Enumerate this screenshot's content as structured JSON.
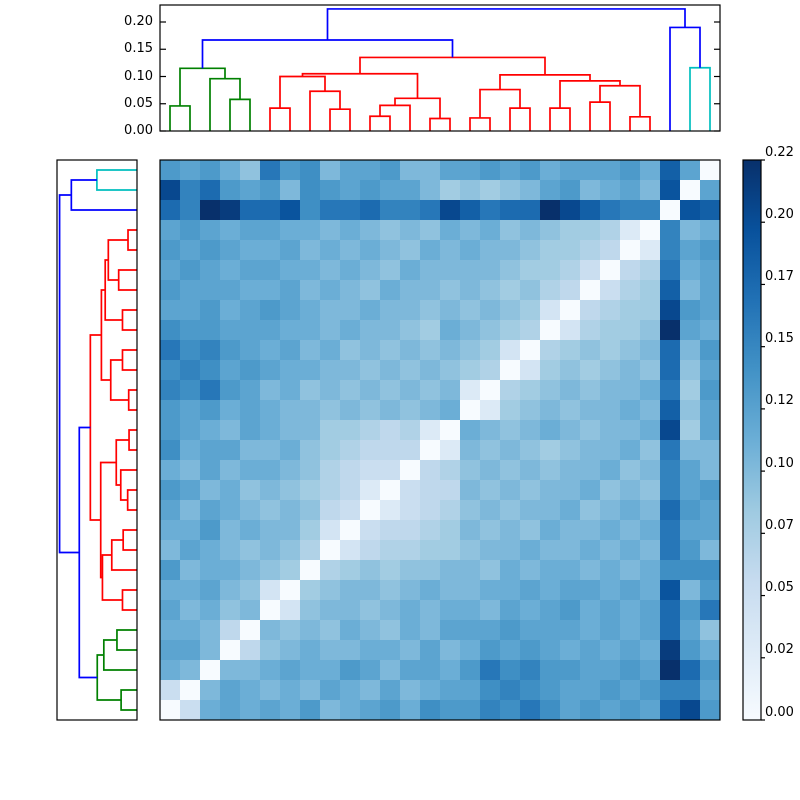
{
  "chart_data": {
    "type": "heatmap",
    "title": "",
    "subtitle": "clustered distance-matrix heatmap with row and column dendrograms",
    "n_rows": 28,
    "n_cols": 28,
    "vmin": 0.0,
    "vmax": 0.22,
    "colormap": "Blues",
    "colormap_stops": [
      "#f7fbff",
      "#deebf7",
      "#c6dbef",
      "#9ecae1",
      "#6baed6",
      "#4292c6",
      "#2171b5",
      "#08519c",
      "#08306b"
    ],
    "grid": false,
    "note": "rows (top to bottom) are the reverse ordering of columns (left to right); anti-diagonal cells equal 0",
    "matrix": [
      [
        0.13,
        0.12,
        0.13,
        0.11,
        0.09,
        0.16,
        0.13,
        0.14,
        0.1,
        0.12,
        0.12,
        0.13,
        0.1,
        0.1,
        0.12,
        0.12,
        0.13,
        0.12,
        0.13,
        0.11,
        0.12,
        0.12,
        0.12,
        0.13,
        0.11,
        0.18,
        0.12,
        0.0
      ],
      [
        0.2,
        0.15,
        0.17,
        0.13,
        0.12,
        0.13,
        0.1,
        0.14,
        0.13,
        0.12,
        0.13,
        0.12,
        0.12,
        0.1,
        0.08,
        0.09,
        0.08,
        0.09,
        0.1,
        0.12,
        0.13,
        0.1,
        0.11,
        0.12,
        0.1,
        0.19,
        0.0,
        0.12
      ],
      [
        0.17,
        0.15,
        0.22,
        0.21,
        0.17,
        0.17,
        0.19,
        0.14,
        0.16,
        0.16,
        0.17,
        0.15,
        0.15,
        0.16,
        0.2,
        0.18,
        0.16,
        0.17,
        0.17,
        0.22,
        0.2,
        0.18,
        0.16,
        0.15,
        0.15,
        0.0,
        0.19,
        0.18
      ],
      [
        0.12,
        0.13,
        0.12,
        0.11,
        0.12,
        0.12,
        0.11,
        0.11,
        0.1,
        0.11,
        0.1,
        0.09,
        0.1,
        0.09,
        0.11,
        0.1,
        0.11,
        0.09,
        0.1,
        0.09,
        0.08,
        0.08,
        0.07,
        0.03,
        0.0,
        0.15,
        0.1,
        0.11
      ],
      [
        0.13,
        0.12,
        0.13,
        0.12,
        0.11,
        0.11,
        0.12,
        0.1,
        0.11,
        0.1,
        0.11,
        0.1,
        0.09,
        0.11,
        0.1,
        0.11,
        0.1,
        0.1,
        0.09,
        0.08,
        0.08,
        0.07,
        0.06,
        0.0,
        0.03,
        0.15,
        0.12,
        0.13
      ],
      [
        0.12,
        0.13,
        0.12,
        0.11,
        0.12,
        0.12,
        0.11,
        0.11,
        0.1,
        0.11,
        0.1,
        0.09,
        0.11,
        0.1,
        0.1,
        0.1,
        0.1,
        0.09,
        0.08,
        0.08,
        0.07,
        0.05,
        0.0,
        0.06,
        0.07,
        0.16,
        0.11,
        0.12
      ],
      [
        0.13,
        0.12,
        0.12,
        0.12,
        0.11,
        0.11,
        0.12,
        0.1,
        0.11,
        0.1,
        0.09,
        0.11,
        0.1,
        0.1,
        0.09,
        0.1,
        0.09,
        0.08,
        0.09,
        0.07,
        0.06,
        0.0,
        0.05,
        0.07,
        0.08,
        0.18,
        0.1,
        0.12
      ],
      [
        0.12,
        0.12,
        0.13,
        0.11,
        0.12,
        0.13,
        0.12,
        0.11,
        0.1,
        0.1,
        0.11,
        0.1,
        0.1,
        0.09,
        0.1,
        0.09,
        0.1,
        0.09,
        0.08,
        0.04,
        0.0,
        0.06,
        0.07,
        0.08,
        0.08,
        0.2,
        0.13,
        0.12
      ],
      [
        0.14,
        0.13,
        0.13,
        0.12,
        0.12,
        0.12,
        0.11,
        0.11,
        0.1,
        0.11,
        0.1,
        0.1,
        0.09,
        0.08,
        0.11,
        0.1,
        0.09,
        0.08,
        0.07,
        0.0,
        0.04,
        0.07,
        0.08,
        0.08,
        0.09,
        0.22,
        0.12,
        0.11
      ],
      [
        0.16,
        0.14,
        0.15,
        0.13,
        0.12,
        0.11,
        0.12,
        0.1,
        0.11,
        0.09,
        0.1,
        0.09,
        0.1,
        0.09,
        0.1,
        0.09,
        0.08,
        0.04,
        0.0,
        0.07,
        0.08,
        0.09,
        0.08,
        0.09,
        0.1,
        0.17,
        0.1,
        0.13
      ],
      [
        0.14,
        0.15,
        0.14,
        0.12,
        0.13,
        0.12,
        0.11,
        0.11,
        0.1,
        0.1,
        0.09,
        0.1,
        0.09,
        0.1,
        0.09,
        0.08,
        0.07,
        0.0,
        0.04,
        0.08,
        0.09,
        0.08,
        0.09,
        0.1,
        0.09,
        0.17,
        0.09,
        0.12
      ],
      [
        0.15,
        0.14,
        0.16,
        0.13,
        0.12,
        0.1,
        0.11,
        0.09,
        0.1,
        0.09,
        0.1,
        0.09,
        0.1,
        0.09,
        0.1,
        0.03,
        0.0,
        0.07,
        0.08,
        0.09,
        0.1,
        0.09,
        0.1,
        0.1,
        0.11,
        0.16,
        0.08,
        0.13
      ],
      [
        0.13,
        0.12,
        0.13,
        0.11,
        0.12,
        0.11,
        0.1,
        0.1,
        0.09,
        0.1,
        0.09,
        0.1,
        0.09,
        0.1,
        0.11,
        0.0,
        0.03,
        0.08,
        0.09,
        0.1,
        0.09,
        0.1,
        0.1,
        0.11,
        0.1,
        0.18,
        0.09,
        0.12
      ],
      [
        0.13,
        0.12,
        0.11,
        0.1,
        0.12,
        0.11,
        0.1,
        0.1,
        0.08,
        0.08,
        0.07,
        0.06,
        0.07,
        0.03,
        0.0,
        0.11,
        0.1,
        0.09,
        0.1,
        0.11,
        0.1,
        0.09,
        0.1,
        0.1,
        0.11,
        0.2,
        0.08,
        0.12
      ],
      [
        0.14,
        0.11,
        0.12,
        0.12,
        0.1,
        0.1,
        0.11,
        0.09,
        0.08,
        0.07,
        0.06,
        0.06,
        0.06,
        0.0,
        0.03,
        0.1,
        0.09,
        0.1,
        0.09,
        0.08,
        0.09,
        0.1,
        0.1,
        0.11,
        0.09,
        0.16,
        0.1,
        0.1
      ],
      [
        0.11,
        0.1,
        0.12,
        0.1,
        0.11,
        0.11,
        0.1,
        0.09,
        0.07,
        0.06,
        0.05,
        0.05,
        0.0,
        0.06,
        0.07,
        0.09,
        0.1,
        0.09,
        0.1,
        0.09,
        0.1,
        0.1,
        0.11,
        0.09,
        0.1,
        0.15,
        0.12,
        0.1
      ],
      [
        0.13,
        0.12,
        0.1,
        0.11,
        0.09,
        0.1,
        0.09,
        0.08,
        0.07,
        0.06,
        0.03,
        0.0,
        0.05,
        0.06,
        0.06,
        0.1,
        0.09,
        0.1,
        0.09,
        0.1,
        0.1,
        0.11,
        0.09,
        0.1,
        0.09,
        0.15,
        0.12,
        0.13
      ],
      [
        0.12,
        0.1,
        0.12,
        0.11,
        0.1,
        0.09,
        0.1,
        0.09,
        0.06,
        0.05,
        0.0,
        0.03,
        0.05,
        0.06,
        0.07,
        0.09,
        0.1,
        0.09,
        0.1,
        0.1,
        0.11,
        0.09,
        0.1,
        0.11,
        0.1,
        0.17,
        0.13,
        0.12
      ],
      [
        0.11,
        0.11,
        0.13,
        0.1,
        0.11,
        0.1,
        0.1,
        0.08,
        0.04,
        0.0,
        0.05,
        0.06,
        0.06,
        0.07,
        0.08,
        0.1,
        0.09,
        0.1,
        0.09,
        0.11,
        0.1,
        0.1,
        0.11,
        0.1,
        0.11,
        0.16,
        0.12,
        0.12
      ],
      [
        0.1,
        0.12,
        0.11,
        0.1,
        0.09,
        0.1,
        0.09,
        0.07,
        0.0,
        0.04,
        0.06,
        0.07,
        0.07,
        0.08,
        0.08,
        0.09,
        0.1,
        0.1,
        0.11,
        0.1,
        0.1,
        0.11,
        0.1,
        0.11,
        0.1,
        0.16,
        0.13,
        0.1
      ],
      [
        0.13,
        0.1,
        0.11,
        0.11,
        0.1,
        0.09,
        0.08,
        0.0,
        0.07,
        0.08,
        0.09,
        0.08,
        0.09,
        0.09,
        0.1,
        0.1,
        0.09,
        0.11,
        0.1,
        0.11,
        0.11,
        0.1,
        0.11,
        0.1,
        0.11,
        0.14,
        0.14,
        0.14
      ],
      [
        0.11,
        0.11,
        0.12,
        0.1,
        0.09,
        0.04,
        0.0,
        0.08,
        0.09,
        0.1,
        0.1,
        0.09,
        0.1,
        0.11,
        0.1,
        0.1,
        0.11,
        0.11,
        0.12,
        0.11,
        0.12,
        0.12,
        0.11,
        0.12,
        0.11,
        0.19,
        0.1,
        0.13
      ],
      [
        0.12,
        0.1,
        0.11,
        0.09,
        0.1,
        0.0,
        0.04,
        0.09,
        0.1,
        0.1,
        0.09,
        0.1,
        0.11,
        0.1,
        0.11,
        0.11,
        0.1,
        0.12,
        0.11,
        0.12,
        0.13,
        0.11,
        0.12,
        0.11,
        0.12,
        0.17,
        0.13,
        0.16
      ],
      [
        0.11,
        0.11,
        0.1,
        0.06,
        0.0,
        0.1,
        0.09,
        0.1,
        0.09,
        0.11,
        0.1,
        0.09,
        0.11,
        0.1,
        0.12,
        0.12,
        0.12,
        0.13,
        0.12,
        0.12,
        0.12,
        0.11,
        0.12,
        0.11,
        0.12,
        0.17,
        0.12,
        0.09
      ],
      [
        0.12,
        0.12,
        0.1,
        0.0,
        0.06,
        0.09,
        0.1,
        0.11,
        0.1,
        0.1,
        0.11,
        0.11,
        0.1,
        0.12,
        0.1,
        0.11,
        0.13,
        0.12,
        0.13,
        0.12,
        0.11,
        0.12,
        0.11,
        0.12,
        0.11,
        0.21,
        0.13,
        0.11
      ],
      [
        0.11,
        0.1,
        0.0,
        0.1,
        0.1,
        0.11,
        0.12,
        0.11,
        0.11,
        0.13,
        0.12,
        0.1,
        0.12,
        0.12,
        0.11,
        0.13,
        0.16,
        0.14,
        0.15,
        0.13,
        0.13,
        0.12,
        0.12,
        0.13,
        0.12,
        0.22,
        0.17,
        0.13
      ],
      [
        0.05,
        0.0,
        0.1,
        0.12,
        0.11,
        0.1,
        0.11,
        0.1,
        0.12,
        0.11,
        0.1,
        0.12,
        0.1,
        0.11,
        0.12,
        0.12,
        0.14,
        0.15,
        0.14,
        0.13,
        0.12,
        0.12,
        0.13,
        0.12,
        0.13,
        0.15,
        0.15,
        0.12
      ],
      [
        0.0,
        0.05,
        0.11,
        0.12,
        0.11,
        0.12,
        0.11,
        0.13,
        0.1,
        0.11,
        0.12,
        0.13,
        0.11,
        0.14,
        0.13,
        0.13,
        0.15,
        0.14,
        0.16,
        0.14,
        0.12,
        0.13,
        0.12,
        0.13,
        0.12,
        0.17,
        0.2,
        0.13
      ]
    ],
    "dendrogram": {
      "n_leaves": 28,
      "axis_max": 0.2315,
      "link_colors": {
        "g": "#008000",
        "r": "#ff0000",
        "c": "#00bfbf",
        "b": "#0000ff"
      },
      "cluster_summary": "green cluster: 5 leaves; red cluster: 20 leaves; cyan pair + blue singleton on the right; blue links above threshold",
      "merges": [
        [
          0,
          1,
          0.046,
          "g"
        ],
        [
          3,
          4,
          0.058,
          "g"
        ],
        [
          2,
          29,
          0.096,
          "g"
        ],
        [
          28,
          30,
          0.115,
          "g"
        ],
        [
          5,
          6,
          0.042,
          "r"
        ],
        [
          8,
          9,
          0.04,
          "r"
        ],
        [
          7,
          33,
          0.073,
          "r"
        ],
        [
          32,
          34,
          0.1,
          "r"
        ],
        [
          10,
          11,
          0.027,
          "r"
        ],
        [
          36,
          12,
          0.047,
          "r"
        ],
        [
          13,
          14,
          0.023,
          "r"
        ],
        [
          38,
          37,
          0.06,
          "r"
        ],
        [
          35,
          39,
          0.105,
          "r"
        ],
        [
          15,
          16,
          0.024,
          "r"
        ],
        [
          17,
          18,
          0.042,
          "r"
        ],
        [
          41,
          42,
          0.076,
          "r"
        ],
        [
          19,
          20,
          0.042,
          "r"
        ],
        [
          21,
          22,
          0.053,
          "r"
        ],
        [
          23,
          24,
          0.026,
          "r"
        ],
        [
          45,
          46,
          0.083,
          "r"
        ],
        [
          44,
          47,
          0.092,
          "r"
        ],
        [
          43,
          48,
          0.103,
          "r"
        ],
        [
          40,
          49,
          0.135,
          "r"
        ],
        [
          26,
          27,
          0.116,
          "c"
        ],
        [
          25,
          51,
          0.19,
          "b"
        ],
        [
          31,
          50,
          0.167,
          "b"
        ],
        [
          53,
          52,
          0.224,
          "b"
        ]
      ]
    },
    "top_axis": {
      "tick_labels": [
        "0.00",
        "0.05",
        "0.10",
        "0.15",
        "0.20"
      ],
      "tick_values": [
        0.0,
        0.05,
        0.1,
        0.15,
        0.2
      ],
      "range": [
        0.0,
        0.2315
      ]
    },
    "colorbar": {
      "tick_labels": [
        "0.00",
        "0.02",
        "0.05",
        "0.07",
        "0.10",
        "0.12",
        "0.15",
        "0.17",
        "0.20",
        "0.22"
      ],
      "tick_values": [
        0.0,
        0.0244,
        0.0489,
        0.0733,
        0.0978,
        0.1222,
        0.1467,
        0.1711,
        0.1956,
        0.22
      ],
      "orientation": "vertical",
      "position": "right"
    },
    "frame_color": "#000000",
    "background_color": "#ffffff"
  }
}
